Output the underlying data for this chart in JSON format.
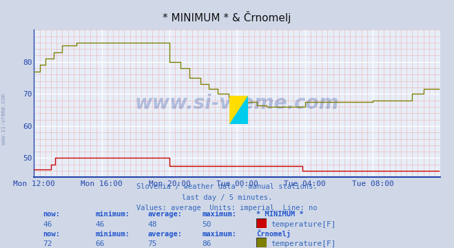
{
  "title": "* MINIMUM * & Črnomelj",
  "bg_color": "#d0d8e8",
  "plot_bg_color": "#e8eef8",
  "xlim": [
    0,
    288
  ],
  "ylim": [
    44,
    90
  ],
  "yticks": [
    50,
    60,
    70,
    80
  ],
  "xtick_labels": [
    "Mon 12:00",
    "Mon 16:00",
    "Mon 20:00",
    "Tue 00:00",
    "Tue 04:00",
    "Tue 08:00"
  ],
  "xtick_positions": [
    0,
    48,
    96,
    144,
    192,
    240
  ],
  "subtitle_lines": [
    "Slovenia / weather data - manual stations.",
    "last day / 5 minutes.",
    "Values: average  Units: imperial  Line: no"
  ],
  "station1_name": "* MINIMUM *",
  "station1_color": "#cc0000",
  "station1_now": "46",
  "station1_min": "46",
  "station1_avg": "48",
  "station1_max": "50",
  "station1_param": "temperature[F]",
  "station2_name": "Črnomelj",
  "station2_color": "#808000",
  "station2_now": "72",
  "station2_min": "66",
  "station2_avg": "75",
  "station2_max": "86",
  "station2_param": "temperature[F]",
  "watermark": "www.si-vreme.com",
  "axis_color": "#2244aa",
  "text_color": "#3366bb",
  "label_color": "#2255cc"
}
